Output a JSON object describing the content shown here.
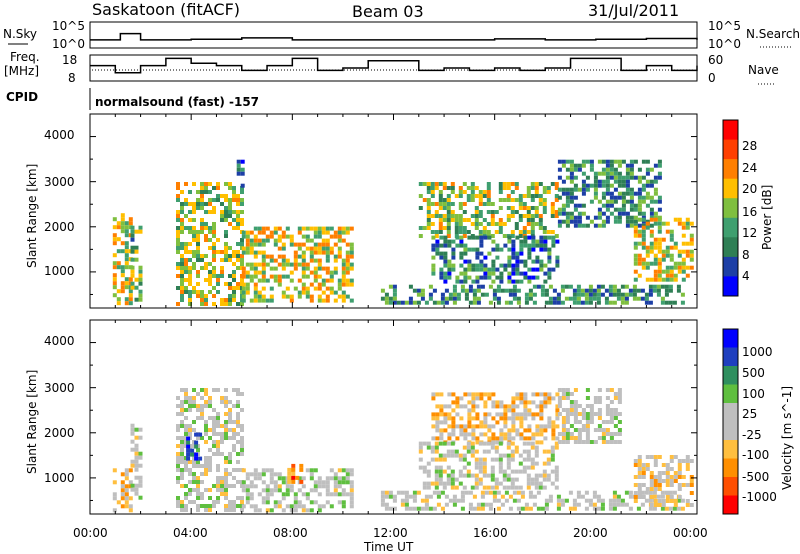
{
  "header": {
    "station": "Saskatoon (fitACF)",
    "beam": "Beam 03",
    "date": "31/Jul/2011"
  },
  "top_panel": {
    "left_label": "N.Sky",
    "left_ticks": [
      "10^5",
      "10^0"
    ],
    "right_label": "N.Search",
    "right_ticks": [
      "10^5",
      "10^0"
    ]
  },
  "freq_panel": {
    "left_label_1": "Freq.",
    "left_label_2": "[MHz]",
    "left_ticks": [
      "18",
      "8"
    ],
    "right_label": "Nave",
    "right_ticks": [
      "60",
      "0"
    ]
  },
  "cpid": {
    "label": "CPID",
    "value": "normalsound (fast) -157"
  },
  "colors": {
    "power_scale": [
      "#0000ff",
      "#1d3fa6",
      "#2f7f55",
      "#3f9f6f",
      "#7fbf3f",
      "#ffbf00",
      "#ff7f00",
      "#ff3f00",
      "#ff0000"
    ],
    "velocity_scale": [
      "#ff0000",
      "#ff4f00",
      "#ff8f00",
      "#ffbf3f",
      "#bfbfbf",
      "#bfbfbf",
      "#5fbf3f",
      "#2f8f5f",
      "#1f3fbf",
      "#0000ff"
    ]
  },
  "chart_data": [
    {
      "type": "line",
      "title": "N.Sky / N.Search",
      "x": [
        0,
        1,
        1.2,
        2,
        4,
        6,
        8,
        10,
        12,
        14,
        16,
        18,
        20,
        22,
        24
      ],
      "series": [
        {
          "name": "N.Sky",
          "values": [
            30,
            30,
            600,
            30,
            40,
            80,
            30,
            30,
            30,
            30,
            50,
            30,
            40,
            60,
            30
          ]
        }
      ]
    },
    {
      "type": "line",
      "title": "Freq./Nave",
      "x": [
        0,
        1,
        1.5,
        2,
        3,
        4,
        5,
        6,
        7,
        8,
        9,
        10,
        11,
        12,
        13,
        14,
        15,
        16,
        17,
        18,
        19,
        20,
        21,
        22,
        23,
        24
      ],
      "series": [
        {
          "name": "Freq. [MHz]",
          "values": [
            14,
            11,
            11,
            14,
            17,
            15,
            14,
            12,
            14,
            17,
            12,
            13,
            16,
            16,
            12,
            13,
            12,
            13,
            12,
            13,
            17,
            17,
            12,
            14,
            12,
            14
          ]
        },
        {
          "name": "Nave",
          "values": [
            20,
            20,
            20,
            20,
            20,
            20,
            20,
            20,
            20,
            20,
            20,
            20,
            20,
            20,
            20,
            20,
            20,
            20,
            20,
            20,
            20,
            20,
            20,
            20,
            20,
            20
          ]
        }
      ]
    },
    {
      "type": "heatmap",
      "title": "Power",
      "ylabel": "Slant Range [km]",
      "xlabel": "Time UT",
      "ylim": [
        200,
        4500
      ],
      "yticks": [
        "1000",
        "2000",
        "3000",
        "4000"
      ],
      "xticks": [
        "00:00",
        "04:00",
        "08:00",
        "12:00",
        "16:00",
        "20:00",
        "00:00"
      ],
      "colorbar_label": "Power [dB]",
      "colorbar_ticks": [
        "4",
        "8",
        "12",
        "16",
        "20",
        "24",
        "28"
      ],
      "blobs": [
        {
          "t0": 0.9,
          "t1": 1.6,
          "r0": 300,
          "r1": 2300,
          "p": 18
        },
        {
          "t0": 1.6,
          "t1": 2.0,
          "r0": 400,
          "r1": 2200,
          "p": 12
        },
        {
          "t0": 3.4,
          "t1": 6.0,
          "r0": 300,
          "r1": 3000,
          "p": 16
        },
        {
          "t0": 6.0,
          "t1": 10.4,
          "r0": 300,
          "r1": 2000,
          "p": 18
        },
        {
          "t0": 5.8,
          "t1": 6.1,
          "r0": 2900,
          "r1": 3500,
          "p": 6
        },
        {
          "t0": 11.5,
          "t1": 23.5,
          "r0": 300,
          "r1": 700,
          "p": 10
        },
        {
          "t0": 13.0,
          "t1": 18.5,
          "r0": 1800,
          "r1": 3000,
          "p": 16
        },
        {
          "t0": 13.5,
          "t1": 18.5,
          "r0": 800,
          "r1": 1800,
          "p": 8
        },
        {
          "t0": 18.5,
          "t1": 22.5,
          "r0": 2000,
          "r1": 3500,
          "p": 10
        },
        {
          "t0": 21.5,
          "t1": 23.8,
          "r0": 800,
          "r1": 2200,
          "p": 18
        }
      ]
    },
    {
      "type": "heatmap",
      "title": "Velocity",
      "ylabel": "Slant Range [km]",
      "xlabel": "Time UT",
      "ylim": [
        200,
        4500
      ],
      "yticks": [
        "1000",
        "2000",
        "3000",
        "4000"
      ],
      "xticks": [
        "00:00",
        "04:00",
        "08:00",
        "12:00",
        "16:00",
        "20:00",
        "00:00"
      ],
      "colorbar_label": "Velocity [m s^-1]",
      "colorbar_ticks": [
        "1000",
        "500",
        "100",
        "25",
        "-25",
        "-100",
        "-500",
        "-1000"
      ],
      "blobs": [
        {
          "t0": 0.9,
          "t1": 1.6,
          "r0": 300,
          "r1": 1200,
          "v": -300
        },
        {
          "t0": 1.6,
          "t1": 2.0,
          "r0": 500,
          "r1": 2200,
          "v": 0
        },
        {
          "t0": 3.4,
          "t1": 6.0,
          "r0": 300,
          "r1": 3000,
          "v": 0
        },
        {
          "t0": 3.8,
          "t1": 4.3,
          "r0": 1400,
          "r1": 2000,
          "v": 800
        },
        {
          "t0": 6.0,
          "t1": 10.4,
          "r0": 300,
          "r1": 1200,
          "v": 80
        },
        {
          "t0": 7.8,
          "t1": 8.4,
          "r0": 900,
          "r1": 1300,
          "v": -600
        },
        {
          "t0": 11.5,
          "t1": 23.5,
          "r0": 300,
          "r1": 700,
          "v": 0
        },
        {
          "t0": 13.5,
          "t1": 18.5,
          "r0": 1800,
          "r1": 2900,
          "v": -300
        },
        {
          "t0": 13.0,
          "t1": 18.5,
          "r0": 800,
          "r1": 1800,
          "v": 0
        },
        {
          "t0": 18.5,
          "t1": 21.0,
          "r0": 1800,
          "r1": 3000,
          "v": 0
        },
        {
          "t0": 21.5,
          "t1": 23.8,
          "r0": 400,
          "r1": 1500,
          "v": -200
        }
      ]
    }
  ]
}
